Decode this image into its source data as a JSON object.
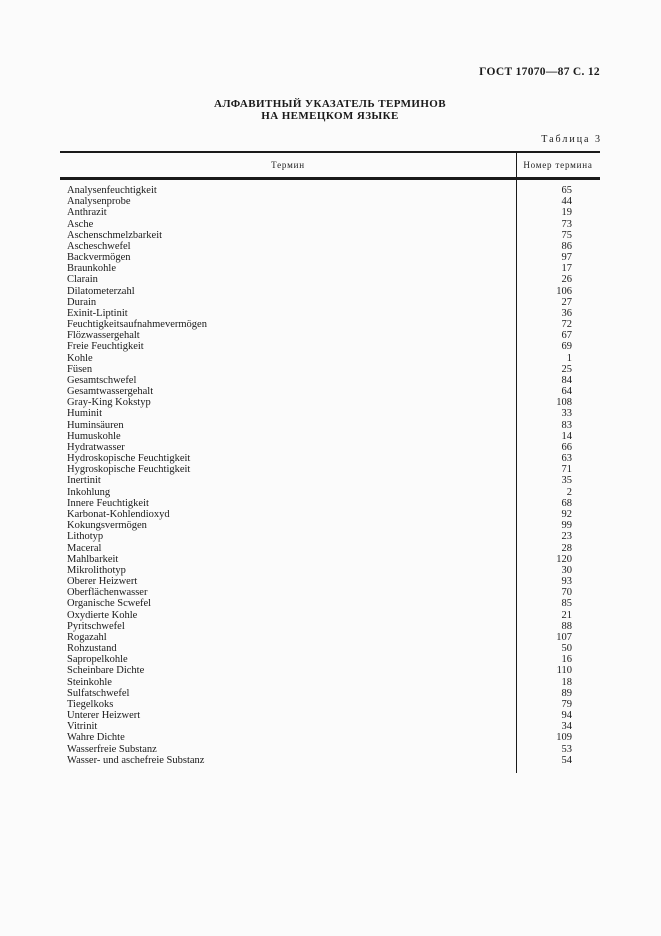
{
  "doc": {
    "header": "ГОСТ 17070—87 С. 12",
    "title_line1": "АЛФАВИТНЫЙ УКАЗАТЕЛЬ ТЕРМИНОВ",
    "title_line2": "НА НЕМЕЦКОМ ЯЗЫКЕ",
    "table_caption": "Таблица 3"
  },
  "table": {
    "col_term": "Термин",
    "col_number": "Номер термина",
    "rows": [
      {
        "term": "Analysenfeuchtigkeit",
        "num": "65"
      },
      {
        "term": "Analysenprobe",
        "num": "44"
      },
      {
        "term": "Anthrazit",
        "num": "19"
      },
      {
        "term": "Asche",
        "num": "73"
      },
      {
        "term": "Aschenschmelzbarkeit",
        "num": "75"
      },
      {
        "term": "Ascheschwefel",
        "num": "86"
      },
      {
        "term": "Backvermögen",
        "num": "97"
      },
      {
        "term": "Braunkohle",
        "num": "17"
      },
      {
        "term": "Clarain",
        "num": "26"
      },
      {
        "term": "Dilatometerzahl",
        "num": "106"
      },
      {
        "term": "Durain",
        "num": "27"
      },
      {
        "term": "Exinit-Liptinit",
        "num": "36"
      },
      {
        "term": "Feuchtigkeitsaufnahmevermögen",
        "num": "72"
      },
      {
        "term": "Flözwassergehalt",
        "num": "67"
      },
      {
        "term": "Freie Feuchtigkeit",
        "num": "69"
      },
      {
        "term": "Kohle",
        "num": "1"
      },
      {
        "term": "Füsen",
        "num": "25"
      },
      {
        "term": "Gesamtschwefel",
        "num": "84"
      },
      {
        "term": "Gesamtwassergehalt",
        "num": "64"
      },
      {
        "term": "Gray-King Kokstyp",
        "num": "108"
      },
      {
        "term": "Huminit",
        "num": "33"
      },
      {
        "term": "Huminsäuren",
        "num": "83"
      },
      {
        "term": "Humuskohle",
        "num": "14"
      },
      {
        "term": "Hydratwasser",
        "num": "66"
      },
      {
        "term": "Hydroskopische Feuchtigkeit",
        "num": "63"
      },
      {
        "term": "Hygroskopische Feuchtigkeit",
        "num": "71"
      },
      {
        "term": "Inertinit",
        "num": "35"
      },
      {
        "term": "Inkohlung",
        "num": "2"
      },
      {
        "term": "Innere Feuchtigkeit",
        "num": "68"
      },
      {
        "term": "Karbonat-Kohlendioxyd",
        "num": "92"
      },
      {
        "term": "Kokungsvermögen",
        "num": "99"
      },
      {
        "term": "Lithotyp",
        "num": "23"
      },
      {
        "term": "Maceral",
        "num": "28"
      },
      {
        "term": "Mahlbarkeit",
        "num": "120"
      },
      {
        "term": "Mikrolithotyp",
        "num": "30"
      },
      {
        "term": "Oberer Heizwert",
        "num": "93"
      },
      {
        "term": "Oberflächenwasser",
        "num": "70"
      },
      {
        "term": "Organische Scwefel",
        "num": "85"
      },
      {
        "term": "Oxydierte Kohle",
        "num": "21"
      },
      {
        "term": "Pyritschwefel",
        "num": "88"
      },
      {
        "term": "Rogazahl",
        "num": "107"
      },
      {
        "term": "Rohzustand",
        "num": "50"
      },
      {
        "term": "Sapropelkohle",
        "num": "16"
      },
      {
        "term": "Scheinbare Dichte",
        "num": "110"
      },
      {
        "term": "Steinkohle",
        "num": "18"
      },
      {
        "term": "Sulfatschwefel",
        "num": "89"
      },
      {
        "term": "Tiegelkoks",
        "num": "79"
      },
      {
        "term": "Unterer Heizwert",
        "num": "94"
      },
      {
        "term": "Vitrinit",
        "num": "34"
      },
      {
        "term": "Wahre Dichte",
        "num": "109"
      },
      {
        "term": "Wasserfreie Substanz",
        "num": "53"
      },
      {
        "term": "Wasser- und aschefreie Substanz",
        "num": "54"
      }
    ]
  }
}
